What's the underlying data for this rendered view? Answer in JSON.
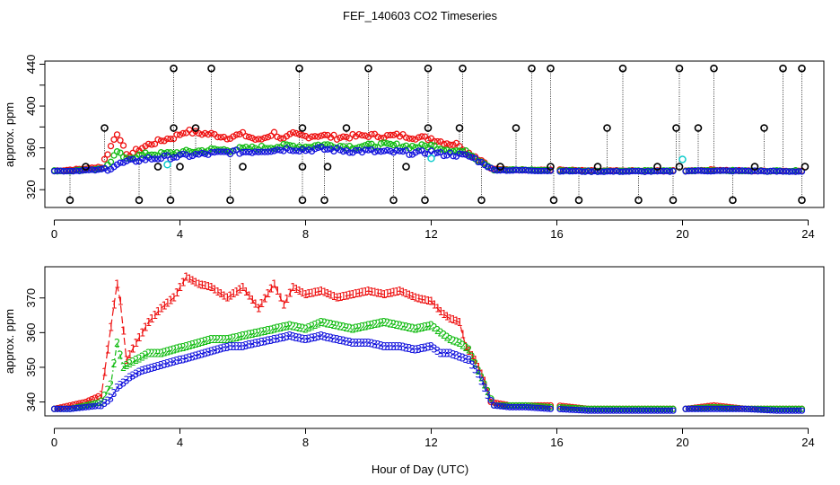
{
  "title": "FEF_140603  CO2 Timeseries",
  "chart_data": [
    {
      "type": "scatter",
      "ylabel": "approx. ppm",
      "xlim": [
        -0.3,
        24.5
      ],
      "ylim": [
        303,
        443
      ],
      "xticks": [
        0,
        4,
        8,
        12,
        16,
        20,
        24
      ],
      "yticks": [
        320,
        360,
        400,
        440
      ],
      "ytick_minor": [
        340,
        380,
        420
      ],
      "series_colors": {
        "1": "#ee1111",
        "2": "#11bb11",
        "3": "#1111dd",
        "4": "#11cccc",
        "spike": "#000000"
      },
      "spike_highs": [
        {
          "x": 3.8,
          "y": 436
        },
        {
          "x": 5.0,
          "y": 436
        },
        {
          "x": 7.8,
          "y": 436
        },
        {
          "x": 10.0,
          "y": 436
        },
        {
          "x": 11.9,
          "y": 436
        },
        {
          "x": 13.0,
          "y": 436
        },
        {
          "x": 15.2,
          "y": 436
        },
        {
          "x": 15.8,
          "y": 436
        },
        {
          "x": 18.1,
          "y": 436
        },
        {
          "x": 19.9,
          "y": 436
        },
        {
          "x": 21.0,
          "y": 436
        },
        {
          "x": 23.2,
          "y": 436
        },
        {
          "x": 23.8,
          "y": 436
        },
        {
          "x": 1.6,
          "y": 379
        },
        {
          "x": 3.8,
          "y": 379
        },
        {
          "x": 4.5,
          "y": 379
        },
        {
          "x": 7.9,
          "y": 379
        },
        {
          "x": 9.3,
          "y": 379
        },
        {
          "x": 11.9,
          "y": 379
        },
        {
          "x": 12.9,
          "y": 379
        },
        {
          "x": 14.7,
          "y": 379
        },
        {
          "x": 17.6,
          "y": 379
        },
        {
          "x": 19.8,
          "y": 379
        },
        {
          "x": 20.5,
          "y": 379
        },
        {
          "x": 22.6,
          "y": 379
        }
      ],
      "spike_lows": [
        {
          "x": 0.5,
          "y": 310
        },
        {
          "x": 2.7,
          "y": 310
        },
        {
          "x": 3.7,
          "y": 310
        },
        {
          "x": 5.6,
          "y": 310
        },
        {
          "x": 7.9,
          "y": 310
        },
        {
          "x": 8.6,
          "y": 310
        },
        {
          "x": 10.8,
          "y": 310
        },
        {
          "x": 11.8,
          "y": 310
        },
        {
          "x": 13.6,
          "y": 310
        },
        {
          "x": 15.9,
          "y": 310
        },
        {
          "x": 16.7,
          "y": 310
        },
        {
          "x": 18.6,
          "y": 310
        },
        {
          "x": 19.7,
          "y": 310
        },
        {
          "x": 21.6,
          "y": 310
        },
        {
          "x": 23.8,
          "y": 310
        }
      ],
      "spike_mid": [
        {
          "x": 1.0,
          "y": 342
        },
        {
          "x": 3.3,
          "y": 342
        },
        {
          "x": 4.0,
          "y": 342
        },
        {
          "x": 6.0,
          "y": 342
        },
        {
          "x": 7.9,
          "y": 342
        },
        {
          "x": 8.7,
          "y": 342
        },
        {
          "x": 11.2,
          "y": 342
        },
        {
          "x": 14.2,
          "y": 342
        },
        {
          "x": 15.8,
          "y": 342
        },
        {
          "x": 17.3,
          "y": 342
        },
        {
          "x": 19.2,
          "y": 342
        },
        {
          "x": 19.9,
          "y": 342
        },
        {
          "x": 22.3,
          "y": 342
        },
        {
          "x": 23.9,
          "y": 342
        }
      ],
      "cyan_points": [
        {
          "x": 3.6,
          "y": 344
        },
        {
          "x": 12.0,
          "y": 350
        },
        {
          "x": 20.0,
          "y": 349
        }
      ]
    },
    {
      "type": "line",
      "xlabel": "Hour of Day (UTC)",
      "ylabel": "approx. ppm",
      "xlim": [
        -0.3,
        24.5
      ],
      "ylim": [
        336,
        379
      ],
      "xticks": [
        0,
        4,
        8,
        12,
        16,
        20,
        24
      ],
      "yticks": [
        340,
        350,
        360,
        370
      ],
      "gap_hours": [
        [
          15.85,
          16.05
        ],
        [
          19.75,
          20.05
        ]
      ],
      "series": [
        {
          "name": "1",
          "color": "#ee1111",
          "style": "longdash",
          "x": [
            0,
            0.5,
            1.0,
            1.5,
            1.7,
            1.9,
            2.0,
            2.1,
            2.3,
            2.6,
            3.0,
            3.4,
            3.8,
            4.2,
            4.6,
            5.0,
            5.5,
            6.0,
            6.5,
            7.0,
            7.3,
            7.6,
            8.0,
            8.5,
            9.0,
            9.5,
            10.0,
            10.5,
            11.0,
            11.5,
            12.0,
            12.3,
            12.6,
            12.9,
            13.1,
            13.4,
            13.7,
            13.9,
            14.5,
            15.0,
            15.8,
            16.0,
            17.0,
            18.0,
            19.0,
            19.7,
            20.1,
            21.0,
            22.0,
            23.0,
            23.8
          ],
          "y": [
            338,
            339,
            340,
            342,
            355,
            368,
            374,
            369,
            352,
            357,
            363,
            367,
            370,
            376,
            374,
            373,
            370,
            373,
            367,
            374,
            368,
            373,
            371,
            372,
            370,
            371,
            372,
            371,
            372,
            370,
            369,
            366,
            364,
            363,
            356,
            352,
            346,
            340,
            339,
            339,
            339,
            339,
            338,
            338,
            338,
            338,
            338,
            339,
            338,
            338,
            338
          ]
        },
        {
          "name": "2",
          "color": "#11bb11",
          "style": "dotdash",
          "x": [
            0,
            0.5,
            1.0,
            1.5,
            1.8,
            2.0,
            2.2,
            2.6,
            3.0,
            3.4,
            3.8,
            4.2,
            4.6,
            5.0,
            5.5,
            6.0,
            6.5,
            7.0,
            7.5,
            8.0,
            8.5,
            9.0,
            9.5,
            10.0,
            10.5,
            11.0,
            11.5,
            12.0,
            12.3,
            12.6,
            12.9,
            13.2,
            13.5,
            13.8,
            14.0,
            14.5,
            15.0,
            15.8,
            16.0,
            17.0,
            18.0,
            19.0,
            19.7,
            20.1,
            21.0,
            22.0,
            23.0,
            23.8
          ],
          "y": [
            338,
            338,
            339,
            340,
            345,
            357,
            350,
            352,
            354,
            354,
            355,
            356,
            357,
            358,
            358,
            359,
            360,
            361,
            362,
            361,
            363,
            362,
            361,
            362,
            363,
            362,
            361,
            362,
            360,
            358,
            357,
            355,
            349,
            343,
            339,
            339,
            339,
            338.5,
            338.5,
            338,
            338,
            338,
            338,
            338,
            338.5,
            338,
            338,
            338
          ]
        },
        {
          "name": "3",
          "color": "#1111dd",
          "style": "dash",
          "x": [
            0,
            0.5,
            1.0,
            1.5,
            1.8,
            2.0,
            2.4,
            2.8,
            3.2,
            3.6,
            4.0,
            4.4,
            4.8,
            5.2,
            5.6,
            6.0,
            6.5,
            7.0,
            7.5,
            8.0,
            8.5,
            9.0,
            9.5,
            10.0,
            10.5,
            11.0,
            11.5,
            12.0,
            12.3,
            12.6,
            12.9,
            13.2,
            13.5,
            13.8,
            14.0,
            14.5,
            15.0,
            15.8,
            16.0,
            17.0,
            18.0,
            19.0,
            19.7,
            20.1,
            21.0,
            22.0,
            23.0,
            23.8
          ],
          "y": [
            338,
            338,
            338.5,
            339,
            341,
            344,
            347,
            349,
            350,
            351,
            352,
            353,
            354,
            355,
            356,
            356,
            357,
            358,
            359,
            358,
            359,
            358,
            357,
            357,
            356,
            356,
            355,
            356,
            354,
            354,
            353,
            352,
            348,
            342,
            339,
            338.5,
            338.5,
            338,
            338,
            337.5,
            337.5,
            337.5,
            337.5,
            338,
            338,
            338,
            337.5,
            337.5
          ]
        }
      ]
    }
  ],
  "axes": {
    "xlabel": "Hour of Day (UTC)",
    "top_ylabel": "approx. ppm",
    "bottom_ylabel": "approx. ppm",
    "top_yticks": [
      "320",
      "360",
      "400",
      "440"
    ],
    "bottom_yticks": [
      "340",
      "350",
      "360",
      "370"
    ],
    "xticks": [
      "0",
      "4",
      "8",
      "12",
      "16",
      "20",
      "24"
    ]
  }
}
